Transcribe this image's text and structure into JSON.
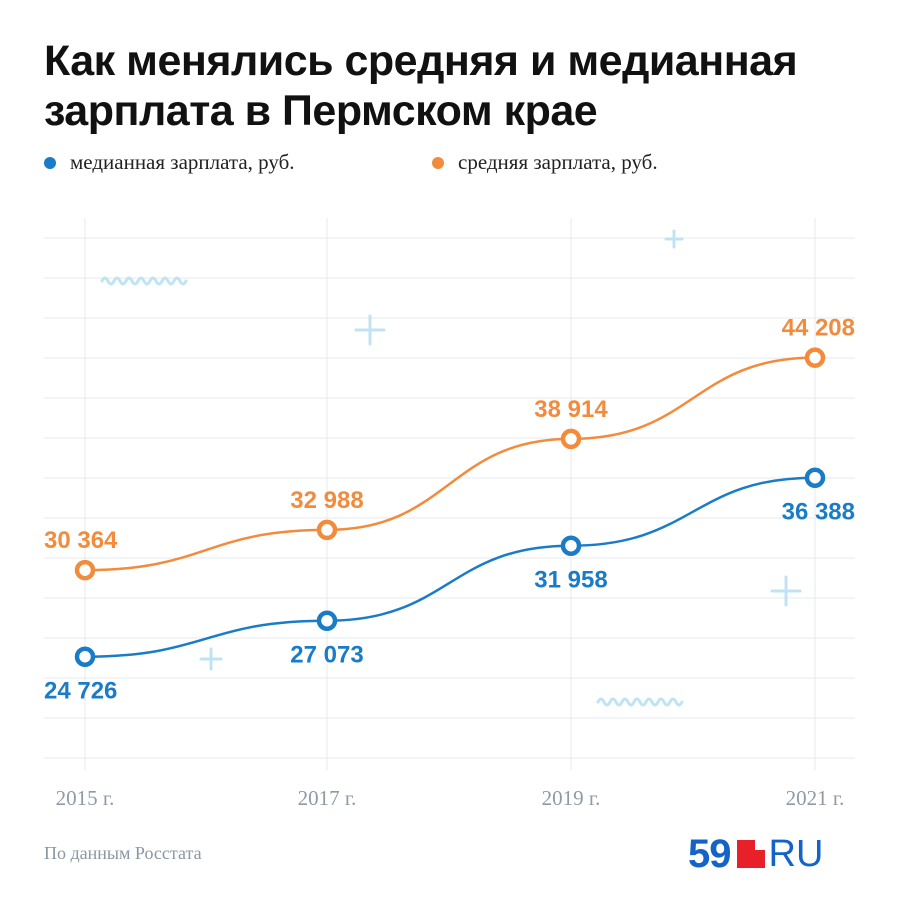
{
  "chart_data": {
    "type": "line",
    "title": "Как менялись средняя и медианная зарплата в Пермском крае",
    "categories": [
      "2015 г.",
      "2017 г.",
      "2019 г.",
      "2021 г."
    ],
    "series": [
      {
        "name": "медианная зарплата, руб.",
        "color": "#1a7cc7",
        "values": [
          24726,
          27073,
          31958,
          36388
        ],
        "labels": [
          "24 726",
          "27 073",
          "31 958",
          "36 388"
        ],
        "label_position": [
          "below",
          "below",
          "below",
          "below"
        ]
      },
      {
        "name": "средняя зарплата, руб.",
        "color": "#f28b3c",
        "values": [
          30364,
          32988,
          38914,
          44208
        ],
        "labels": [
          "30 364",
          "32 988",
          "38 914",
          "44 208"
        ],
        "label_position": [
          "above",
          "above",
          "above",
          "above"
        ]
      }
    ],
    "ylim": [
      18000,
      52000
    ],
    "grid": true,
    "legend": "top-left"
  },
  "source": "По данным Росстата",
  "logo": {
    "number": "59",
    "suffix": "RU"
  },
  "colors": {
    "median": "#1a7cc7",
    "average": "#f28b3c",
    "grid": "#e6e9ec",
    "deco": "#bfe3f3"
  }
}
